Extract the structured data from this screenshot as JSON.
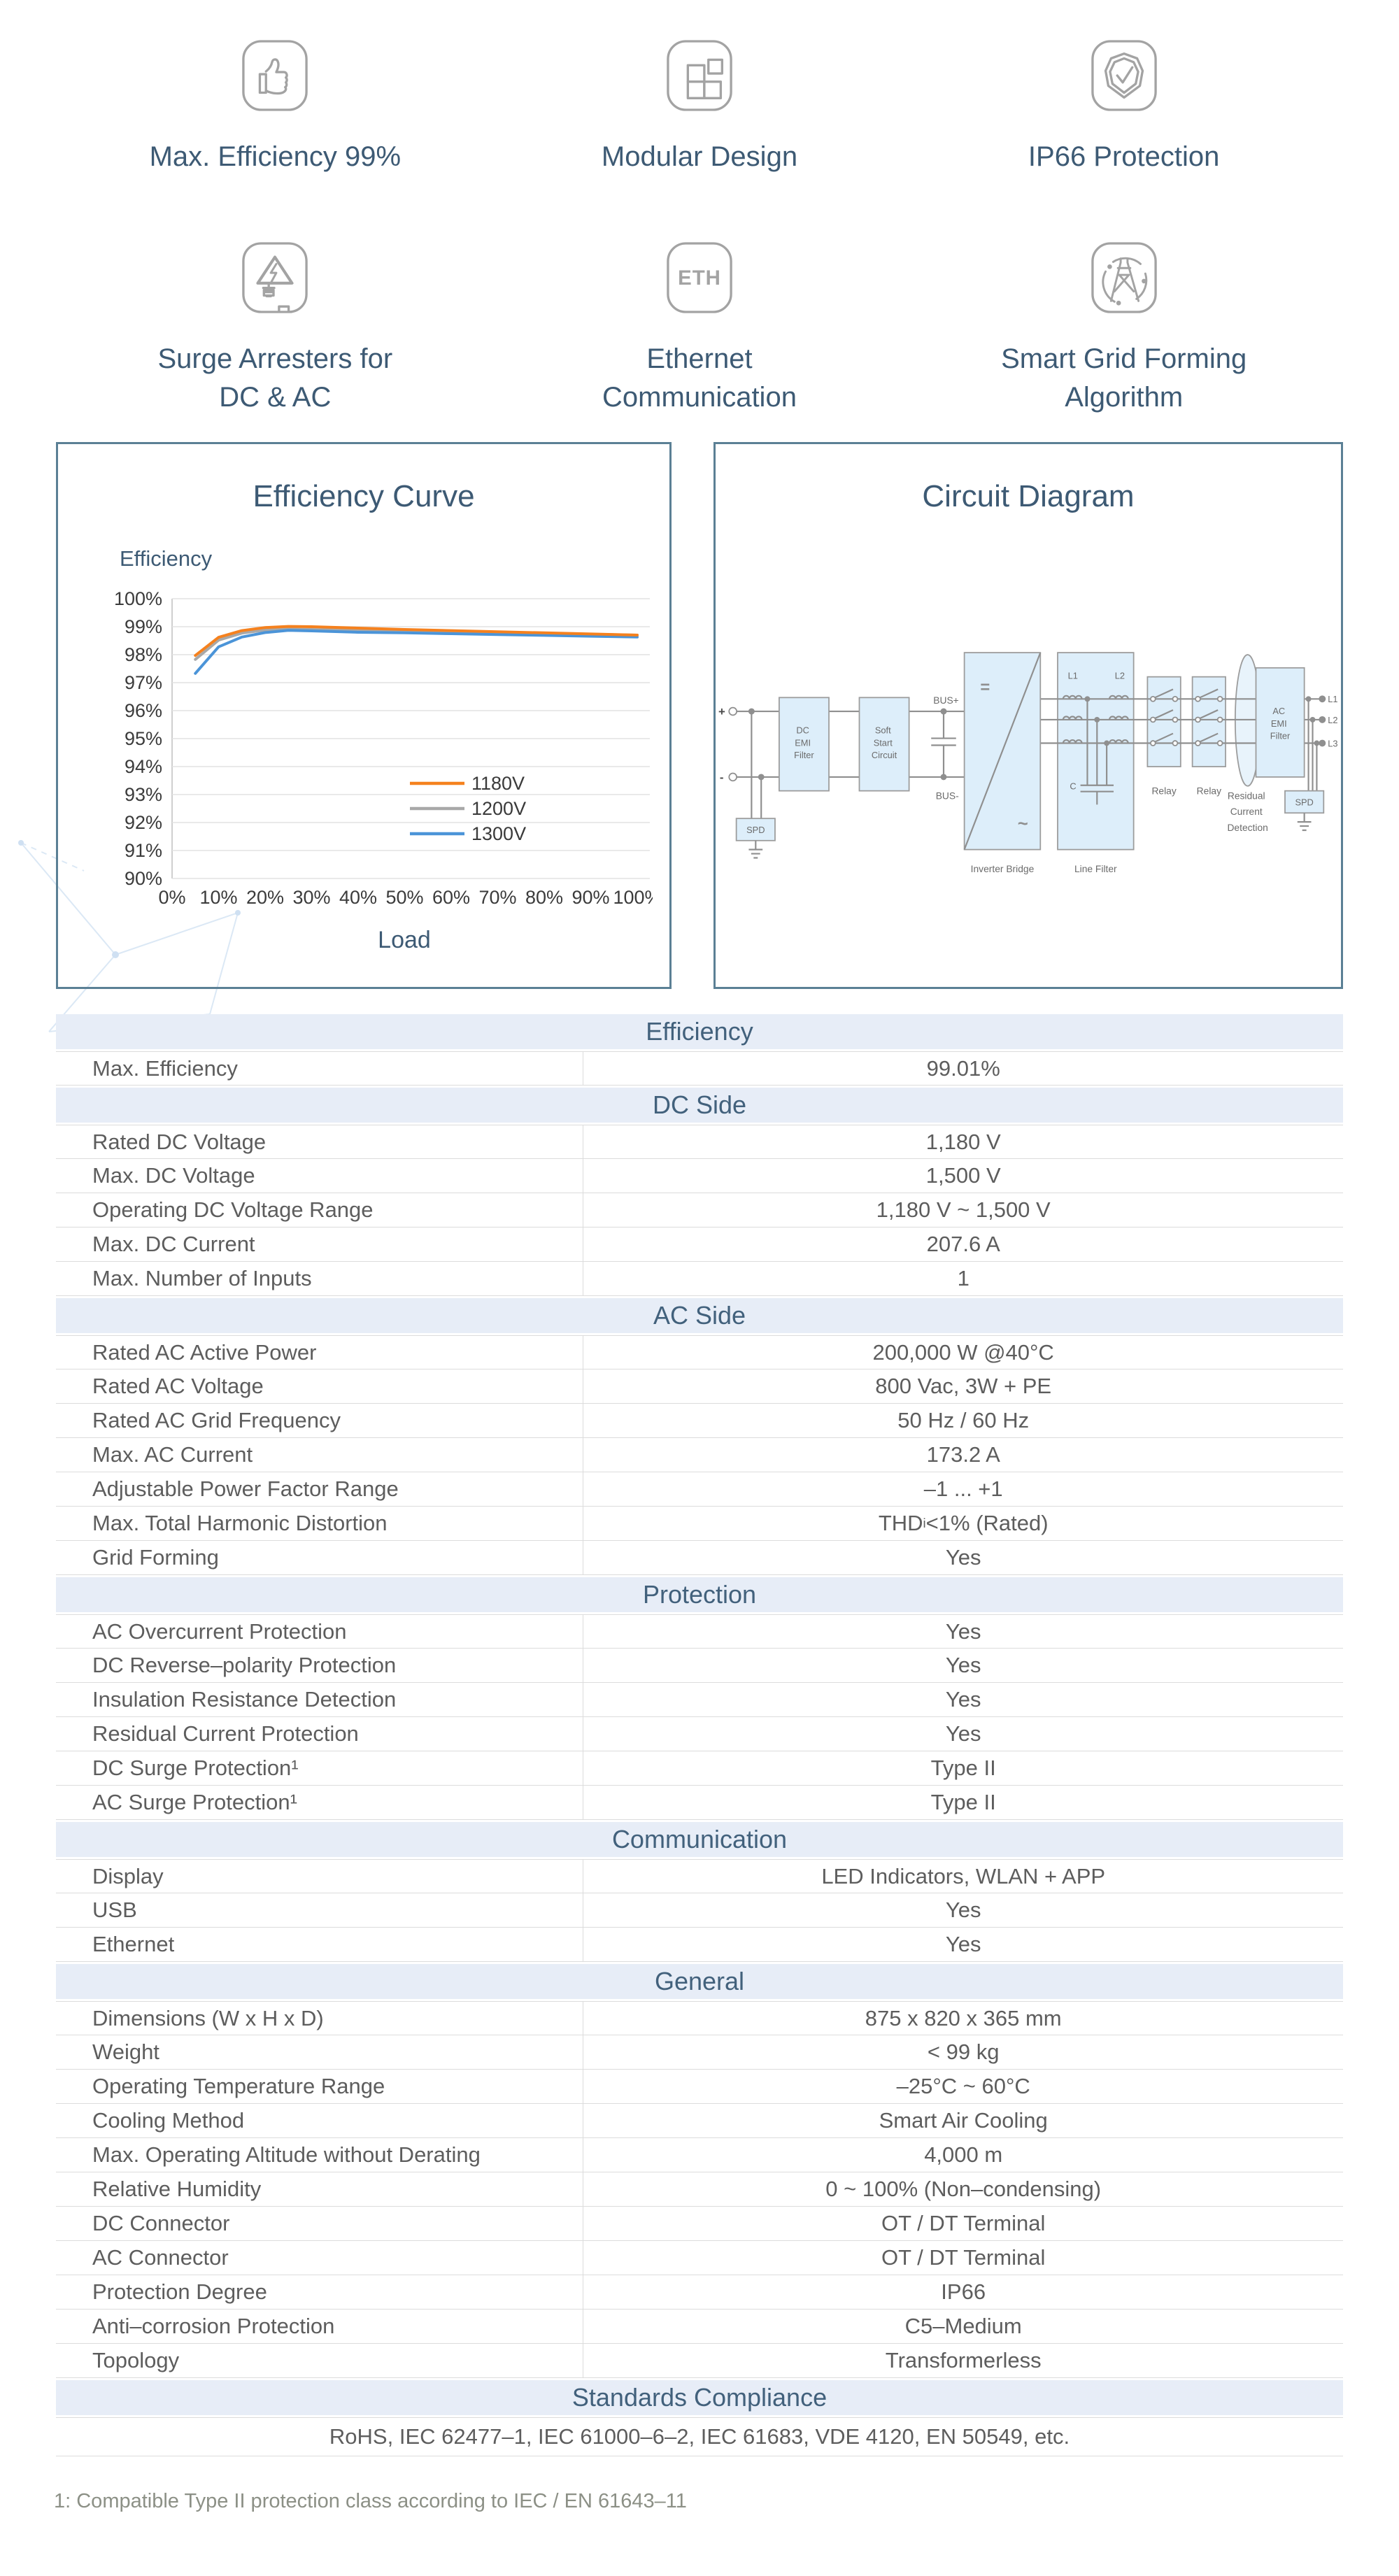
{
  "features": [
    {
      "icon": "thumbs-up",
      "lines": [
        "Max. Efficiency 99%"
      ]
    },
    {
      "icon": "modular-design",
      "lines": [
        "Modular Design"
      ]
    },
    {
      "icon": "shield-check",
      "lines": [
        "IP66 Protection"
      ]
    },
    {
      "icon": "surge-arrester",
      "lines": [
        "Surge Arresters for",
        "DC & AC"
      ]
    },
    {
      "icon": "ethernet",
      "lines": [
        "Ethernet",
        "Communication"
      ]
    },
    {
      "icon": "smart-grid",
      "lines": [
        "Smart Grid Forming",
        "Algorithm"
      ]
    }
  ],
  "chart_data": {
    "type": "line",
    "title": "Efficiency Curve",
    "ylabel": "Efficiency",
    "xlabel": "Load",
    "xlim": [
      0,
      100
    ],
    "ylim": [
      90,
      100
    ],
    "grid": true,
    "legend_position": "inside-right",
    "x_ticks": [
      "0%",
      "10%",
      "20%",
      "30%",
      "40%",
      "50%",
      "60%",
      "70%",
      "80%",
      "90%",
      "100%"
    ],
    "y_ticks": [
      "100%",
      "99%",
      "98%",
      "97%",
      "96%",
      "95%",
      "94%",
      "93%",
      "92%",
      "91%",
      "90%"
    ],
    "x": [
      5,
      10,
      15,
      20,
      25,
      30,
      40,
      50,
      60,
      70,
      80,
      90,
      100
    ],
    "series": [
      {
        "name": "1180V",
        "color": "#f5811e",
        "values": [
          97.97,
          98.62,
          98.86,
          98.97,
          99.01,
          99.0,
          98.95,
          98.9,
          98.86,
          98.82,
          98.78,
          98.74,
          98.7
        ]
      },
      {
        "name": "1200V",
        "color": "#a8a8a8",
        "values": [
          97.83,
          98.52,
          98.77,
          98.88,
          98.92,
          98.9,
          98.87,
          98.85,
          98.82,
          98.79,
          98.76,
          98.73,
          98.7
        ]
      },
      {
        "name": "1300V",
        "color": "#4b94d8",
        "values": [
          97.33,
          98.28,
          98.63,
          98.79,
          98.87,
          98.85,
          98.8,
          98.78,
          98.75,
          98.72,
          98.69,
          98.66,
          98.63
        ]
      }
    ]
  },
  "circuit": {
    "title": "Circuit Diagram",
    "labels": {
      "in_plus": "+",
      "in_minus": "-",
      "spd_left": "SPD",
      "dc_emi": [
        "DC",
        "EMI",
        "Filter"
      ],
      "soft_start": [
        "Soft",
        "Start",
        "Circuit"
      ],
      "bus_plus": "BUS+",
      "bus_minus": "BUS-",
      "inverter_symbol_dc": "=",
      "inverter_symbol_ac": "~",
      "inverter_bridge": "Inverter Bridge",
      "l1": "L1",
      "l2": "L2",
      "c": "C",
      "line_filter": "Line Filter",
      "relay_1": "Relay",
      "relay_2": "Relay",
      "rcd": [
        "Residual",
        "Current",
        "Detection"
      ],
      "ac_emi": [
        "AC",
        "EMI",
        "Filter"
      ],
      "spd_right": "SPD",
      "out_l1": "L1",
      "out_l2": "L2",
      "out_l3": "L3"
    }
  },
  "spec_table": {
    "sections": [
      {
        "title": "Efficiency",
        "rows": [
          {
            "label": "Max. Efficiency",
            "value": "99.01%"
          }
        ]
      },
      {
        "title": "DC Side",
        "rows": [
          {
            "label": "Rated DC Voltage",
            "value": "1,180 V"
          },
          {
            "label": "Max. DC Voltage",
            "value": "1,500 V"
          },
          {
            "label": "Operating DC Voltage Range",
            "value": "1,180 V ~ 1,500 V"
          },
          {
            "label": "Max. DC Current",
            "value": "207.6 A"
          },
          {
            "label": "Max. Number of Inputs",
            "value": "1"
          }
        ]
      },
      {
        "title": "AC Side",
        "rows": [
          {
            "label": "Rated AC Active Power",
            "value": "200,000 W @40°C"
          },
          {
            "label": "Rated AC Voltage",
            "value": "800 Vac, 3W + PE"
          },
          {
            "label": "Rated AC Grid Frequency",
            "value": "50 Hz / 60 Hz"
          },
          {
            "label": "Max. AC Current",
            "value": "173.2 A"
          },
          {
            "label": "Adjustable Power Factor Range",
            "value": "–1 ... +1"
          },
          {
            "label": "Max. Total Harmonic Distortion",
            "value": {
              "pre": "THD",
              "sub": "i",
              "post": " <1% (Rated)"
            }
          },
          {
            "label": "Grid Forming",
            "value": "Yes"
          }
        ]
      },
      {
        "title": "Protection",
        "rows": [
          {
            "label": "AC Overcurrent Protection",
            "value": "Yes"
          },
          {
            "label": "DC Reverse–polarity Protection",
            "value": "Yes"
          },
          {
            "label": "Insulation Resistance Detection",
            "value": "Yes"
          },
          {
            "label": "Residual Current Protection",
            "value": "Yes"
          },
          {
            "label": "DC Surge Protection¹",
            "value": "Type II"
          },
          {
            "label": "AC Surge Protection¹",
            "value": "Type II"
          }
        ]
      },
      {
        "title": "Communication",
        "rows": [
          {
            "label": "Display",
            "value": "LED Indicators, WLAN + APP"
          },
          {
            "label": "USB",
            "value": "Yes"
          },
          {
            "label": "Ethernet",
            "value": "Yes"
          }
        ]
      },
      {
        "title": "General",
        "rows": [
          {
            "label": "Dimensions (W x H x D)",
            "value": "875 x 820 x 365 mm"
          },
          {
            "label": "Weight",
            "value": "< 99 kg"
          },
          {
            "label": "Operating Temperature Range",
            "value": "–25°C ~ 60°C"
          },
          {
            "label": "Cooling Method",
            "value": "Smart Air Cooling"
          },
          {
            "label": "Max. Operating Altitude without Derating",
            "value": "4,000 m"
          },
          {
            "label": "Relative Humidity",
            "value": "0 ~ 100% (Non–condensing)"
          },
          {
            "label": "DC Connector",
            "value": "OT / DT Terminal"
          },
          {
            "label": "AC Connector",
            "value": "OT / DT Terminal"
          },
          {
            "label": "Protection Degree",
            "value": "IP66"
          },
          {
            "label": "Anti–corrosion Protection",
            "value": "C5–Medium"
          },
          {
            "label": "Topology",
            "value": "Transformerless"
          }
        ]
      },
      {
        "title": "Standards Compliance",
        "full_row": "RoHS, IEC 62477–1, IEC 61000–6–2, IEC 61683, VDE 4120, EN 50549, etc."
      }
    ]
  },
  "footnote": "1: Compatible Type II protection class according to IEC / EN 61643–11",
  "colors": {
    "accent_heading": "#3d5a74",
    "card_border": "#5b8095",
    "section_header_bg": "#e7edf7",
    "section_header_text": "#42617c",
    "cell_text": "#5d5d5d",
    "grid_line": "#e2e2e2",
    "series_1180V": "#f5811e",
    "series_1200V": "#a8a8a8",
    "series_1300V": "#4b94d8"
  }
}
